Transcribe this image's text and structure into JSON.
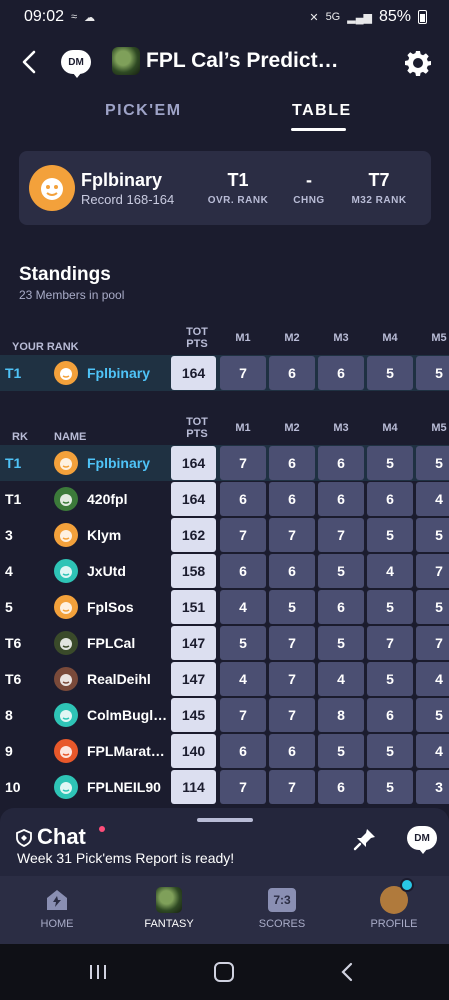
{
  "status_bar": {
    "time": "09:02",
    "battery": "85%",
    "network": "5G"
  },
  "app_bar": {
    "title": "FPL Cal’s Predict…",
    "dm_label": "DM"
  },
  "tabs": [
    {
      "label": "PICK'EM"
    },
    {
      "label": "TABLE"
    }
  ],
  "rank_card": {
    "name": "Fplbinary",
    "record": "Record 168-164",
    "stats": [
      {
        "value": "T1",
        "label": "OVR. RANK"
      },
      {
        "value": "-",
        "label": "CHNG"
      },
      {
        "value": "T7",
        "label": "M32 RANK"
      }
    ]
  },
  "standings": {
    "title": "Standings",
    "subtitle": "23 Members in pool",
    "your_rank_header": "YOUR RANK",
    "rank_header": "RK",
    "name_header": "NAME",
    "pts_header_1": "TOT",
    "pts_header_2": "PTS",
    "matchdays": [
      "M1",
      "M2",
      "M3",
      "M4",
      "M5"
    ],
    "your_row": {
      "rank": "T1",
      "name": "Fplbinary",
      "pts": "164",
      "scores": [
        "7",
        "6",
        "6",
        "5",
        "5"
      ]
    },
    "rows": [
      {
        "rank": "T1",
        "name": "Fplbinary",
        "pts": "164",
        "scores": [
          "7",
          "6",
          "6",
          "5",
          "5"
        ],
        "avatar": "orange"
      },
      {
        "rank": "T1",
        "name": "420fpl",
        "pts": "164",
        "scores": [
          "6",
          "6",
          "6",
          "6",
          "4"
        ],
        "avatar": "green"
      },
      {
        "rank": "3",
        "name": "Klym",
        "pts": "162",
        "scores": [
          "7",
          "7",
          "7",
          "5",
          "5"
        ],
        "avatar": "orange"
      },
      {
        "rank": "4",
        "name": "JxUtd",
        "pts": "158",
        "scores": [
          "6",
          "6",
          "5",
          "4",
          "7"
        ],
        "avatar": "teal"
      },
      {
        "rank": "5",
        "name": "FplSos",
        "pts": "151",
        "scores": [
          "4",
          "5",
          "6",
          "5",
          "5"
        ],
        "avatar": "orange"
      },
      {
        "rank": "T6",
        "name": "FPLCal",
        "pts": "147",
        "scores": [
          "5",
          "7",
          "5",
          "7",
          "7"
        ],
        "avatar": "photo"
      },
      {
        "rank": "T6",
        "name": "RealDeihl",
        "pts": "147",
        "scores": [
          "4",
          "7",
          "4",
          "5",
          "4"
        ],
        "avatar": "photo2"
      },
      {
        "rank": "8",
        "name": "ColmBugle…",
        "pts": "145",
        "scores": [
          "7",
          "7",
          "8",
          "6",
          "5"
        ],
        "avatar": "teal"
      },
      {
        "rank": "9",
        "name": "FPLMarath…",
        "pts": "140",
        "scores": [
          "6",
          "6",
          "5",
          "5",
          "4"
        ],
        "avatar": "red"
      },
      {
        "rank": "10",
        "name": "FPLNEIL90",
        "pts": "114",
        "scores": [
          "7",
          "7",
          "6",
          "5",
          "3"
        ],
        "avatar": "teal"
      }
    ]
  },
  "chat": {
    "title": "Chat",
    "message": "Week 31 Pick'ems Report is ready!",
    "dm_label": "DM"
  },
  "bottom_nav": [
    {
      "label": "HOME"
    },
    {
      "label": "FANTASY"
    },
    {
      "label": "SCORES",
      "icon_text": "7:3"
    },
    {
      "label": "PROFILE"
    }
  ],
  "colors": {
    "background": "#1b1c2e",
    "highlight_text": "#4fc3f7",
    "orange_avatar": "#f3a13b",
    "teal_avatar": "#2ec4b6",
    "red_avatar": "#e8582a"
  }
}
